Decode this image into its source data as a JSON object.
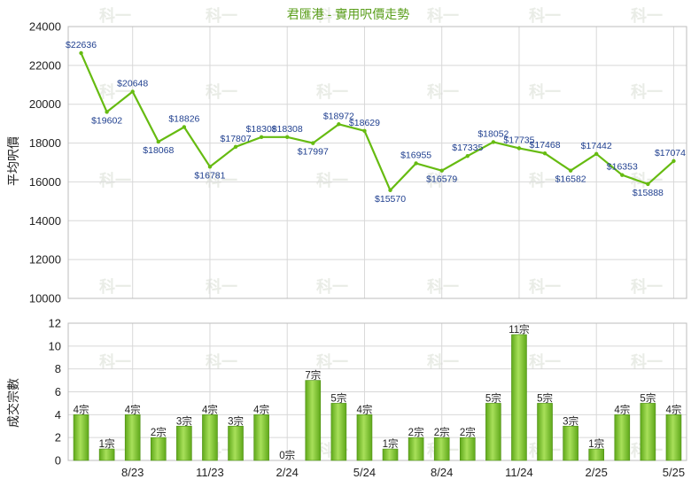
{
  "chart_data": [
    {
      "type": "line",
      "title": "君匯港 - 實用呎價走勢",
      "ylabel": "平均呎價",
      "ylim": [
        10000,
        24000
      ],
      "yticks": [
        10000,
        12000,
        14000,
        16000,
        18000,
        20000,
        22000,
        24000
      ],
      "grid": true,
      "line_color": "#66bb11",
      "series": [
        {
          "values": [
            22636,
            19602,
            20648,
            18068,
            18826,
            16781,
            17807,
            18308,
            18308,
            17997,
            18972,
            18629,
            15570,
            16955,
            16579,
            17335,
            18052,
            17735,
            17468,
            16582,
            17442,
            16353,
            15888,
            17074
          ],
          "labels": [
            "$22636",
            "$19602",
            "$20648",
            "$18068",
            "$18826",
            "$16781",
            "$17807",
            "$18308",
            "$18308",
            "$17997",
            "$18972",
            "$18629",
            "$15570",
            "$16955",
            "$16579",
            "$17335",
            "$18052",
            "$17735",
            "$17468",
            "$16582",
            "$17442",
            "$16353",
            "$15888",
            "$17074"
          ]
        }
      ]
    },
    {
      "type": "bar",
      "ylabel": "成交宗數",
      "ylim": [
        0,
        12
      ],
      "yticks": [
        0,
        2,
        4,
        6,
        8,
        10,
        12
      ],
      "grid": true,
      "bar_color": "#7cc62a",
      "x_tick_labels": [
        "8/23",
        "11/23",
        "2/24",
        "5/24",
        "8/24",
        "11/24",
        "2/25",
        "5/25"
      ],
      "x_tick_positions": [
        2,
        5,
        8,
        11,
        14,
        17,
        20,
        23
      ],
      "values": [
        4,
        1,
        4,
        2,
        3,
        4,
        3,
        4,
        0,
        7,
        5,
        4,
        1,
        2,
        2,
        2,
        5,
        11,
        5,
        3,
        1,
        4,
        5,
        4
      ],
      "labels": [
        "4宗",
        "1宗",
        "4宗",
        "2宗",
        "3宗",
        "4宗",
        "3宗",
        "4宗",
        "0宗",
        "7宗",
        "5宗",
        "4宗",
        "1宗",
        "2宗",
        "2宗",
        "2宗",
        "5宗",
        "11宗",
        "5宗",
        "3宗",
        "1宗",
        "4宗",
        "5宗",
        "4宗"
      ]
    }
  ],
  "watermark": "科一"
}
